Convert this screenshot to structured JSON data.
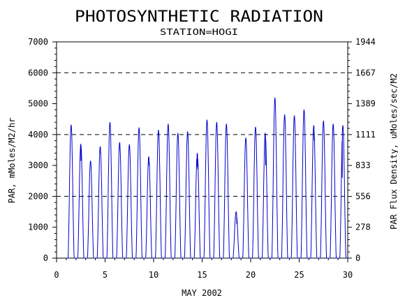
{
  "chart_data": {
    "type": "line",
    "title": "PHOTOSYNTHETIC RADIATION",
    "subtitle": "STATION=HOGI",
    "xlabel": "MAY 2002",
    "ylabel_left": "PAR, mMoles/M2/hr",
    "ylabel_right": "PAR Flux Density, uMoles/sec/M2",
    "xlim": [
      0,
      30
    ],
    "ylim": [
      0,
      7000
    ],
    "x_ticks": [
      "0",
      "5",
      "10",
      "15",
      "20",
      "25",
      "30"
    ],
    "y_ticks_left": [
      "0",
      "1000",
      "2000",
      "3000",
      "4000",
      "5000",
      "6000",
      "7000"
    ],
    "y_ticks_right": [
      "0",
      "278",
      "556",
      "833",
      "1111",
      "1389",
      "1667",
      "1944"
    ],
    "reference_lines": [
      2000,
      4000,
      6000
    ],
    "grid": false,
    "legend": "none",
    "colors": {
      "series": "#0000cc",
      "axes": "#000000",
      "reference": "#000000"
    },
    "series": [
      {
        "daily": [
          {
            "day": 1,
            "peak": 4320,
            "shoulders": []
          },
          {
            "day": 2,
            "peak": 3700,
            "shoulders": [
              {
                "dt": 0.02,
                "v": 3150
              }
            ]
          },
          {
            "day": 3,
            "peak": 3150,
            "shoulders": []
          },
          {
            "day": 4,
            "peak": 3620,
            "shoulders": [
              {
                "dt": 0.03,
                "v": 3400
              }
            ]
          },
          {
            "day": 5,
            "peak": 4400,
            "shoulders": []
          },
          {
            "day": 6,
            "peak": 3750,
            "shoulders": [
              {
                "dt": 0.05,
                "v": 3500
              }
            ]
          },
          {
            "day": 7,
            "peak": 3680,
            "shoulders": []
          },
          {
            "day": 8,
            "peak": 4230,
            "shoulders": []
          },
          {
            "day": 9,
            "peak": 3290,
            "shoulders": [
              {
                "dt": 0.03,
                "v": 3000
              }
            ]
          },
          {
            "day": 10,
            "peak": 4150,
            "shoulders": []
          },
          {
            "day": 11,
            "peak": 4350,
            "shoulders": []
          },
          {
            "day": 12,
            "peak": 4050,
            "shoulders": []
          },
          {
            "day": 13,
            "peak": 4100,
            "shoulders": []
          },
          {
            "day": 14,
            "peak": 3400,
            "shoulders": [
              {
                "dt": -0.05,
                "v": 2950
              },
              {
                "dt": 0.05,
                "v": 2880
              }
            ]
          },
          {
            "day": 15,
            "peak": 4480,
            "shoulders": []
          },
          {
            "day": 16,
            "peak": 4400,
            "shoulders": []
          },
          {
            "day": 17,
            "peak": 4350,
            "shoulders": []
          },
          {
            "day": 18,
            "peak": 1500,
            "shoulders": [
              {
                "dt": -0.07,
                "v": 1320
              },
              {
                "dt": 0.07,
                "v": 1100
              }
            ]
          },
          {
            "day": 19,
            "peak": 3900,
            "shoulders": []
          },
          {
            "day": 20,
            "peak": 4250,
            "shoulders": []
          },
          {
            "day": 21,
            "peak": 4050,
            "shoulders": [
              {
                "dt": 0.05,
                "v": 3000
              }
            ]
          },
          {
            "day": 22,
            "peak": 5200,
            "shoulders": []
          },
          {
            "day": 23,
            "peak": 4650,
            "shoulders": []
          },
          {
            "day": 24,
            "peak": 4620,
            "shoulders": []
          },
          {
            "day": 25,
            "peak": 4810,
            "shoulders": []
          },
          {
            "day": 26,
            "peak": 4300,
            "shoulders": [
              {
                "dt": 0.05,
                "v": 3800
              }
            ]
          },
          {
            "day": 27,
            "peak": 4450,
            "shoulders": []
          },
          {
            "day": 28,
            "peak": 4350,
            "shoulders": []
          },
          {
            "day": 29,
            "peak": 4300,
            "shoulders": [
              {
                "dt": -0.06,
                "v": 2600
              }
            ]
          }
        ]
      }
    ]
  }
}
